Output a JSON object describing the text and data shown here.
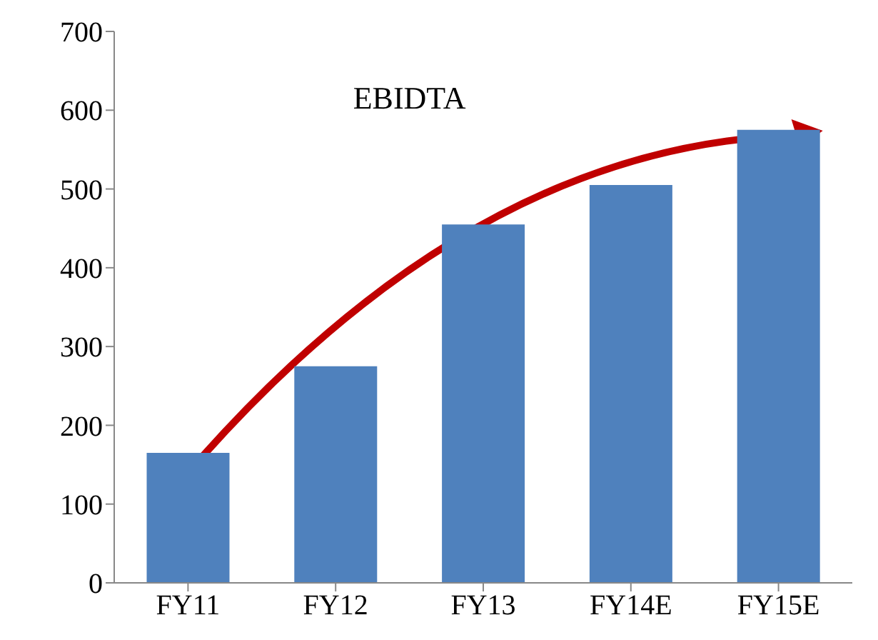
{
  "chart_data": {
    "type": "bar",
    "title": "EBIDTA",
    "categories": [
      "FY11",
      "FY12",
      "FY13",
      "FY14E",
      "FY15E"
    ],
    "values": [
      165,
      275,
      455,
      505,
      575
    ],
    "color": "#4f81bd",
    "ylim": [
      0,
      700
    ],
    "yticks": [
      0,
      100,
      200,
      300,
      400,
      500,
      600,
      700
    ]
  }
}
